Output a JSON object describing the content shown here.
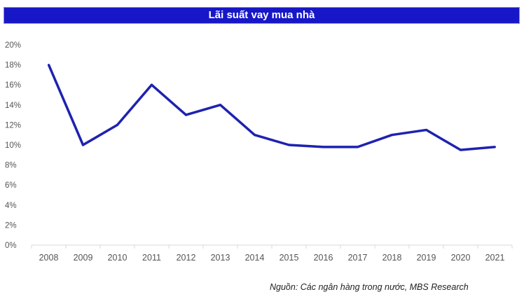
{
  "chart_data": {
    "type": "line",
    "title": "Lãi suất vay mua nhà",
    "xlabel": "",
    "ylabel": "",
    "categories": [
      "2008",
      "2009",
      "2010",
      "2011",
      "2012",
      "2013",
      "2014",
      "2015",
      "2016",
      "2017",
      "2018",
      "2019",
      "2020",
      "2021"
    ],
    "series": [
      {
        "name": "Lãi suất vay mua nhà",
        "values": [
          18,
          10,
          12,
          16,
          13,
          14,
          11,
          10,
          9.8,
          9.8,
          11,
          11.5,
          9.5,
          9.8
        ],
        "color": "#1e22b0"
      }
    ],
    "ylim": [
      0,
      20
    ],
    "yticks": [
      "0%",
      "2%",
      "4%",
      "6%",
      "8%",
      "10%",
      "12%",
      "14%",
      "16%",
      "18%",
      "20%"
    ],
    "grid": false,
    "legend": "none"
  },
  "source": "Nguồn: Các ngân hàng trong nước, MBS Research"
}
